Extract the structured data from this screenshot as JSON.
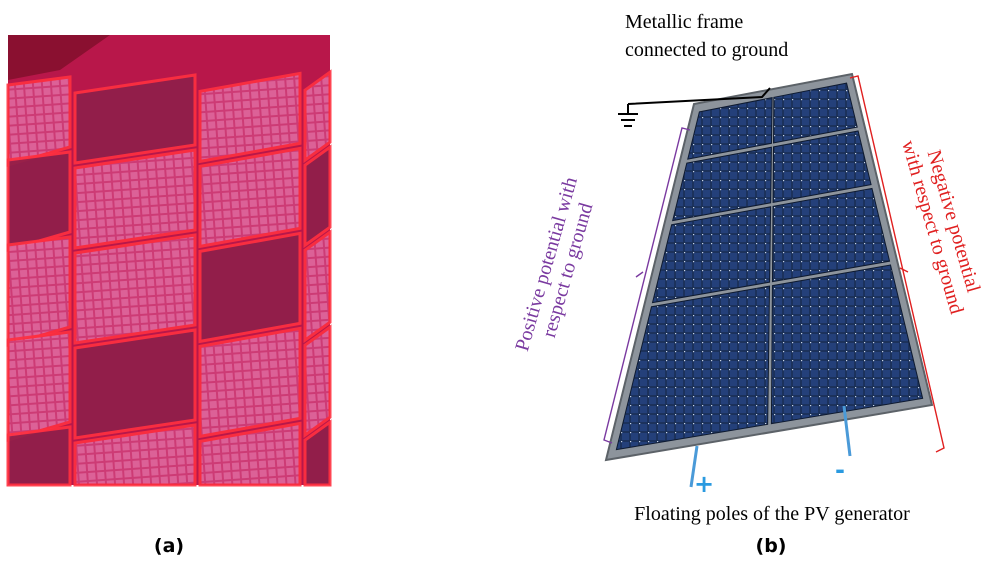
{
  "figure": {
    "captions": [
      "(a)",
      "(b)"
    ],
    "frame_label": [
      "Metallic frame",
      "connected to ground"
    ],
    "negative_label": [
      "Negative potential",
      "with respect to ground"
    ],
    "positive_label": [
      "Positive potential with",
      "respect to ground"
    ],
    "plus": "+",
    "minus": "-",
    "poles_label": "Floating poles of the PV generator"
  }
}
